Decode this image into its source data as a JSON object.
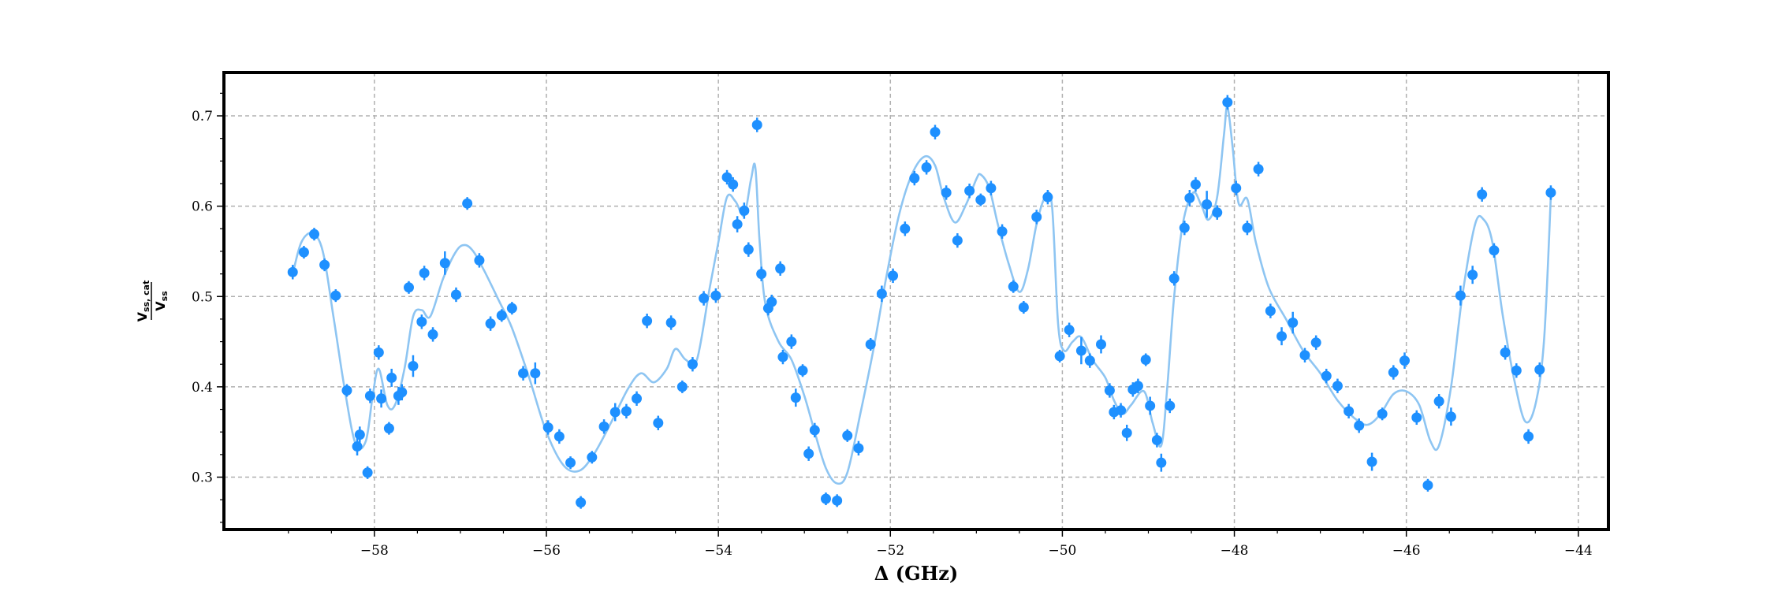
{
  "chart_data": {
    "type": "scatter",
    "xlabel": "Δ (GHz)",
    "ylabel": {
      "numerator_main": "V",
      "numerator_sub": "ss, cat",
      "denominator_main": "V",
      "denominator_sub": "ss"
    },
    "xlim": [
      -59.75,
      -43.65
    ],
    "ylim": [
      0.242,
      0.748
    ],
    "x_ticks": [
      -58,
      -56,
      -54,
      -52,
      -50,
      -48,
      -46,
      -44
    ],
    "x_tick_labels": [
      "−58",
      "−56",
      "−54",
      "−52",
      "−50",
      "−48",
      "−46",
      "−44"
    ],
    "y_ticks": [
      0.3,
      0.4,
      0.5,
      0.6,
      0.7
    ],
    "y_tick_labels": [
      "0.3",
      "0.4",
      "0.5",
      "0.6",
      "0.7"
    ],
    "grid": true,
    "colors": {
      "points": "#1e90ff",
      "fit_line": "#8ec5f2",
      "grid": "#b0b0b0",
      "frame": "#000000"
    },
    "series": [
      {
        "kind": "points_with_error_bars",
        "points": [
          [
            -58.95,
            0.527,
            0.008
          ],
          [
            -58.82,
            0.549,
            0.007
          ],
          [
            -58.7,
            0.569,
            0.007
          ],
          [
            -58.58,
            0.535,
            0.007
          ],
          [
            -58.45,
            0.501,
            0.007
          ],
          [
            -58.32,
            0.396,
            0.007
          ],
          [
            -58.2,
            0.334,
            0.01
          ],
          [
            -58.17,
            0.347,
            0.009
          ],
          [
            -58.08,
            0.305,
            0.007
          ],
          [
            -58.05,
            0.39,
            0.008
          ],
          [
            -57.95,
            0.438,
            0.008
          ],
          [
            -57.92,
            0.387,
            0.01
          ],
          [
            -57.83,
            0.354,
            0.007
          ],
          [
            -57.8,
            0.41,
            0.01
          ],
          [
            -57.72,
            0.39,
            0.01
          ],
          [
            -57.68,
            0.394,
            0.009
          ],
          [
            -57.6,
            0.51,
            0.007
          ],
          [
            -57.55,
            0.423,
            0.012
          ],
          [
            -57.45,
            0.472,
            0.008
          ],
          [
            -57.42,
            0.526,
            0.008
          ],
          [
            -57.32,
            0.458,
            0.008
          ],
          [
            -57.18,
            0.537,
            0.013
          ],
          [
            -57.05,
            0.502,
            0.008
          ],
          [
            -56.92,
            0.603,
            0.007
          ],
          [
            -56.78,
            0.54,
            0.008
          ],
          [
            -56.65,
            0.47,
            0.008
          ],
          [
            -56.52,
            0.479,
            0.007
          ],
          [
            -56.4,
            0.487,
            0.007
          ],
          [
            -56.27,
            0.415,
            0.008
          ],
          [
            -56.13,
            0.415,
            0.012
          ],
          [
            -55.98,
            0.355,
            0.008
          ],
          [
            -55.85,
            0.345,
            0.008
          ],
          [
            -55.72,
            0.316,
            0.007
          ],
          [
            -55.6,
            0.272,
            0.007
          ],
          [
            -55.47,
            0.322,
            0.007
          ],
          [
            -55.33,
            0.356,
            0.008
          ],
          [
            -55.2,
            0.372,
            0.01
          ],
          [
            -55.07,
            0.373,
            0.008
          ],
          [
            -54.95,
            0.387,
            0.008
          ],
          [
            -54.83,
            0.473,
            0.008
          ],
          [
            -54.7,
            0.36,
            0.008
          ],
          [
            -54.55,
            0.471,
            0.008
          ],
          [
            -54.42,
            0.4,
            0.007
          ],
          [
            -54.3,
            0.425,
            0.008
          ],
          [
            -54.17,
            0.498,
            0.008
          ],
          [
            -54.03,
            0.501,
            0.008
          ],
          [
            -53.9,
            0.632,
            0.008
          ],
          [
            -53.83,
            0.624,
            0.008
          ],
          [
            -53.78,
            0.58,
            0.009
          ],
          [
            -53.7,
            0.595,
            0.009
          ],
          [
            -53.65,
            0.552,
            0.008
          ],
          [
            -53.55,
            0.69,
            0.008
          ],
          [
            -53.5,
            0.525,
            0.008
          ],
          [
            -53.42,
            0.487,
            0.008
          ],
          [
            -53.38,
            0.494,
            0.008
          ],
          [
            -53.28,
            0.531,
            0.008
          ],
          [
            -53.25,
            0.433,
            0.008
          ],
          [
            -53.15,
            0.45,
            0.008
          ],
          [
            -53.1,
            0.388,
            0.01
          ],
          [
            -53.02,
            0.418,
            0.007
          ],
          [
            -52.95,
            0.326,
            0.008
          ],
          [
            -52.88,
            0.352,
            0.008
          ],
          [
            -52.75,
            0.276,
            0.007
          ],
          [
            -52.62,
            0.274,
            0.007
          ],
          [
            -52.5,
            0.346,
            0.007
          ],
          [
            -52.37,
            0.332,
            0.008
          ],
          [
            -52.23,
            0.447,
            0.007
          ],
          [
            -52.1,
            0.503,
            0.009
          ],
          [
            -51.97,
            0.523,
            0.008
          ],
          [
            -51.83,
            0.575,
            0.008
          ],
          [
            -51.72,
            0.631,
            0.008
          ],
          [
            -51.58,
            0.643,
            0.008
          ],
          [
            -51.48,
            0.682,
            0.008
          ],
          [
            -51.35,
            0.615,
            0.008
          ],
          [
            -51.22,
            0.562,
            0.008
          ],
          [
            -51.08,
            0.617,
            0.008
          ],
          [
            -50.95,
            0.607,
            0.007
          ],
          [
            -50.83,
            0.62,
            0.008
          ],
          [
            -50.7,
            0.572,
            0.008
          ],
          [
            -50.57,
            0.511,
            0.007
          ],
          [
            -50.45,
            0.488,
            0.007
          ],
          [
            -50.3,
            0.588,
            0.008
          ],
          [
            -50.17,
            0.61,
            0.008
          ],
          [
            -50.03,
            0.434,
            0.007
          ],
          [
            -49.92,
            0.463,
            0.008
          ],
          [
            -49.78,
            0.44,
            0.015
          ],
          [
            -49.68,
            0.429,
            0.008
          ],
          [
            -49.55,
            0.447,
            0.01
          ],
          [
            -49.45,
            0.396,
            0.008
          ],
          [
            -49.4,
            0.372,
            0.008
          ],
          [
            -49.32,
            0.374,
            0.008
          ],
          [
            -49.25,
            0.349,
            0.009
          ],
          [
            -49.18,
            0.397,
            0.008
          ],
          [
            -49.12,
            0.401,
            0.008
          ],
          [
            -49.03,
            0.43,
            0.007
          ],
          [
            -48.98,
            0.379,
            0.01
          ],
          [
            -48.9,
            0.341,
            0.008
          ],
          [
            -48.85,
            0.316,
            0.01
          ],
          [
            -48.75,
            0.379,
            0.008
          ],
          [
            -48.7,
            0.52,
            0.008
          ],
          [
            -48.58,
            0.576,
            0.008
          ],
          [
            -48.52,
            0.609,
            0.009
          ],
          [
            -48.45,
            0.624,
            0.008
          ],
          [
            -48.32,
            0.602,
            0.015
          ],
          [
            -48.2,
            0.593,
            0.008
          ],
          [
            -48.08,
            0.715,
            0.008
          ],
          [
            -47.98,
            0.62,
            0.008
          ],
          [
            -47.85,
            0.576,
            0.008
          ],
          [
            -47.72,
            0.641,
            0.008
          ],
          [
            -47.58,
            0.484,
            0.008
          ],
          [
            -47.45,
            0.456,
            0.01
          ],
          [
            -47.32,
            0.471,
            0.012
          ],
          [
            -47.18,
            0.435,
            0.008
          ],
          [
            -47.05,
            0.449,
            0.008
          ],
          [
            -46.93,
            0.412,
            0.008
          ],
          [
            -46.8,
            0.401,
            0.008
          ],
          [
            -46.67,
            0.373,
            0.008
          ],
          [
            -46.55,
            0.357,
            0.008
          ],
          [
            -46.4,
            0.317,
            0.01
          ],
          [
            -46.28,
            0.37,
            0.007
          ],
          [
            -46.15,
            0.416,
            0.008
          ],
          [
            -46.02,
            0.429,
            0.009
          ],
          [
            -45.88,
            0.366,
            0.008
          ],
          [
            -45.75,
            0.291,
            0.007
          ],
          [
            -45.62,
            0.384,
            0.008
          ],
          [
            -45.48,
            0.367,
            0.01
          ],
          [
            -45.37,
            0.501,
            0.011
          ],
          [
            -45.23,
            0.524,
            0.01
          ],
          [
            -45.12,
            0.613,
            0.008
          ],
          [
            -44.98,
            0.551,
            0.008
          ],
          [
            -44.85,
            0.438,
            0.008
          ],
          [
            -44.72,
            0.418,
            0.008
          ],
          [
            -44.58,
            0.345,
            0.008
          ],
          [
            -44.45,
            0.419,
            0.008
          ],
          [
            -44.32,
            0.615,
            0.008
          ]
        ]
      },
      {
        "kind": "fit_curve",
        "points": [
          [
            -58.95,
            0.525
          ],
          [
            -58.85,
            0.56
          ],
          [
            -58.72,
            0.57
          ],
          [
            -58.6,
            0.55
          ],
          [
            -58.48,
            0.48
          ],
          [
            -58.35,
            0.4
          ],
          [
            -58.22,
            0.337
          ],
          [
            -58.1,
            0.34
          ],
          [
            -58.02,
            0.39
          ],
          [
            -57.95,
            0.42
          ],
          [
            -57.85,
            0.38
          ],
          [
            -57.76,
            0.38
          ],
          [
            -57.65,
            0.42
          ],
          [
            -57.55,
            0.478
          ],
          [
            -57.45,
            0.485
          ],
          [
            -57.35,
            0.478
          ],
          [
            -57.2,
            0.52
          ],
          [
            -57.05,
            0.55
          ],
          [
            -56.95,
            0.557
          ],
          [
            -56.85,
            0.55
          ],
          [
            -56.72,
            0.528
          ],
          [
            -56.55,
            0.495
          ],
          [
            -56.4,
            0.465
          ],
          [
            -56.2,
            0.41
          ],
          [
            -56.0,
            0.35
          ],
          [
            -55.8,
            0.313
          ],
          [
            -55.62,
            0.307
          ],
          [
            -55.45,
            0.325
          ],
          [
            -55.25,
            0.36
          ],
          [
            -55.05,
            0.398
          ],
          [
            -54.9,
            0.415
          ],
          [
            -54.75,
            0.405
          ],
          [
            -54.6,
            0.42
          ],
          [
            -54.5,
            0.442
          ],
          [
            -54.38,
            0.43
          ],
          [
            -54.25,
            0.43
          ],
          [
            -54.1,
            0.51
          ],
          [
            -54.0,
            0.56
          ],
          [
            -53.9,
            0.61
          ],
          [
            -53.8,
            0.605
          ],
          [
            -53.7,
            0.59
          ],
          [
            -53.62,
            0.63
          ],
          [
            -53.57,
            0.643
          ],
          [
            -53.52,
            0.56
          ],
          [
            -53.45,
            0.49
          ],
          [
            -53.3,
            0.45
          ],
          [
            -53.15,
            0.43
          ],
          [
            -53.0,
            0.39
          ],
          [
            -52.88,
            0.35
          ],
          [
            -52.75,
            0.31
          ],
          [
            -52.62,
            0.293
          ],
          [
            -52.5,
            0.305
          ],
          [
            -52.35,
            0.37
          ],
          [
            -52.2,
            0.44
          ],
          [
            -52.05,
            0.52
          ],
          [
            -51.9,
            0.59
          ],
          [
            -51.75,
            0.635
          ],
          [
            -51.6,
            0.655
          ],
          [
            -51.48,
            0.645
          ],
          [
            -51.38,
            0.61
          ],
          [
            -51.25,
            0.582
          ],
          [
            -51.12,
            0.602
          ],
          [
            -51.0,
            0.63
          ],
          [
            -50.95,
            0.635
          ],
          [
            -50.85,
            0.62
          ],
          [
            -50.75,
            0.58
          ],
          [
            -50.62,
            0.535
          ],
          [
            -50.5,
            0.505
          ],
          [
            -50.4,
            0.53
          ],
          [
            -50.3,
            0.58
          ],
          [
            -50.2,
            0.61
          ],
          [
            -50.12,
            0.6
          ],
          [
            -50.05,
            0.47
          ],
          [
            -49.98,
            0.44
          ],
          [
            -49.88,
            0.45
          ],
          [
            -49.78,
            0.455
          ],
          [
            -49.65,
            0.43
          ],
          [
            -49.5,
            0.41
          ],
          [
            -49.4,
            0.385
          ],
          [
            -49.3,
            0.37
          ],
          [
            -49.2,
            0.38
          ],
          [
            -49.05,
            0.395
          ],
          [
            -48.95,
            0.36
          ],
          [
            -48.85,
            0.335
          ],
          [
            -48.78,
            0.4
          ],
          [
            -48.7,
            0.5
          ],
          [
            -48.6,
            0.58
          ],
          [
            -48.48,
            0.615
          ],
          [
            -48.38,
            0.6
          ],
          [
            -48.3,
            0.585
          ],
          [
            -48.2,
            0.61
          ],
          [
            -48.12,
            0.68
          ],
          [
            -48.08,
            0.71
          ],
          [
            -48.02,
            0.665
          ],
          [
            -47.95,
            0.603
          ],
          [
            -47.85,
            0.608
          ],
          [
            -47.75,
            0.56
          ],
          [
            -47.6,
            0.51
          ],
          [
            -47.4,
            0.475
          ],
          [
            -47.2,
            0.44
          ],
          [
            -47.0,
            0.415
          ],
          [
            -46.8,
            0.385
          ],
          [
            -46.6,
            0.365
          ],
          [
            -46.45,
            0.358
          ],
          [
            -46.3,
            0.37
          ],
          [
            -46.15,
            0.392
          ],
          [
            -46.0,
            0.395
          ],
          [
            -45.85,
            0.38
          ],
          [
            -45.72,
            0.34
          ],
          [
            -45.62,
            0.335
          ],
          [
            -45.48,
            0.4
          ],
          [
            -45.35,
            0.5
          ],
          [
            -45.2,
            0.58
          ],
          [
            -45.1,
            0.585
          ],
          [
            -45.0,
            0.56
          ],
          [
            -44.88,
            0.48
          ],
          [
            -44.75,
            0.41
          ],
          [
            -44.62,
            0.362
          ],
          [
            -44.5,
            0.38
          ],
          [
            -44.4,
            0.45
          ],
          [
            -44.32,
            0.61
          ]
        ]
      }
    ]
  }
}
